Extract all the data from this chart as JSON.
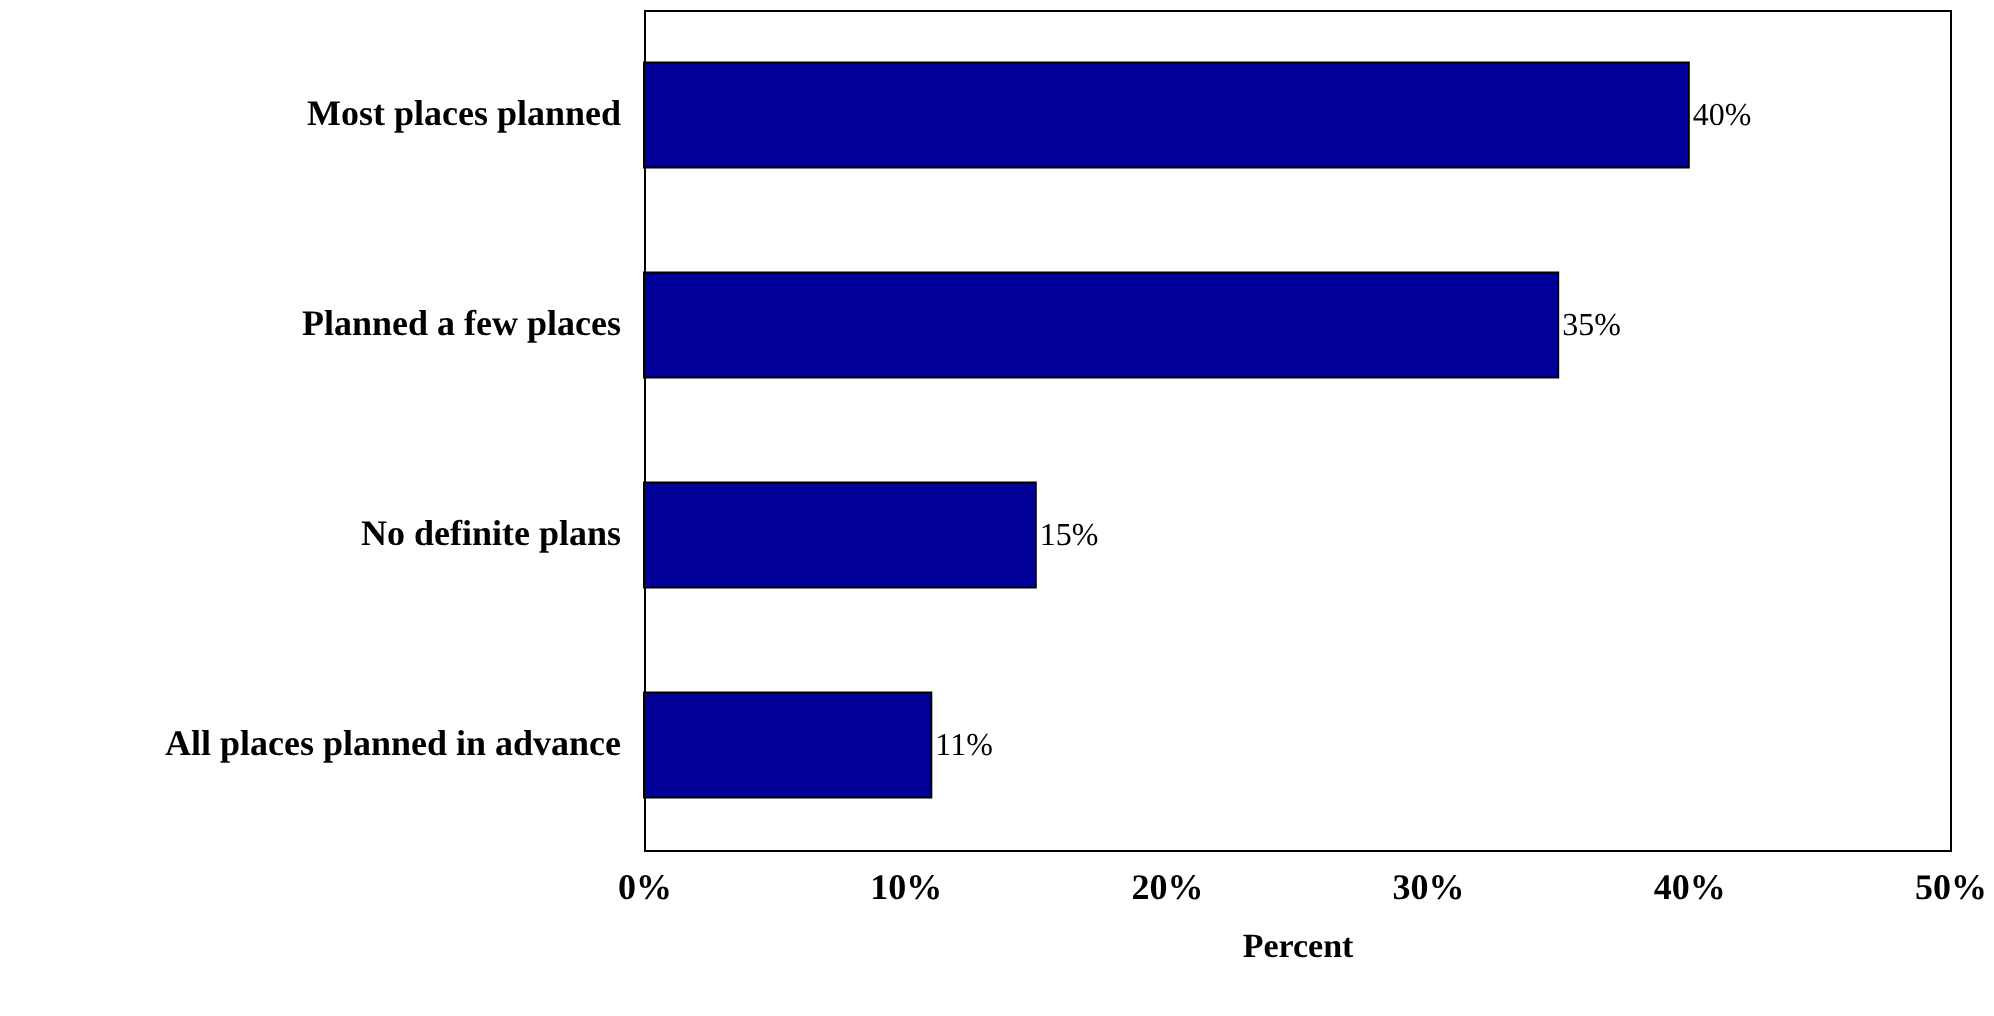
{
  "chart_data": {
    "type": "bar",
    "orientation": "horizontal",
    "xlabel": "Percent",
    "categories": [
      "Most places planned",
      "Planned a few places",
      "No definite plans",
      "All places planned in advance"
    ],
    "values": [
      40,
      35,
      15,
      11
    ],
    "value_labels": [
      "40%",
      "35%",
      "15%",
      "11%"
    ],
    "color": "#000099",
    "xlim": [
      0,
      50
    ],
    "xticks": [
      {
        "value": 0,
        "label": "0%"
      },
      {
        "value": 10,
        "label": "10%"
      },
      {
        "value": 20,
        "label": "20%"
      },
      {
        "value": 30,
        "label": "30%"
      },
      {
        "value": 40,
        "label": "40%"
      },
      {
        "value": 50,
        "label": "50%"
      }
    ],
    "grid": false
  }
}
